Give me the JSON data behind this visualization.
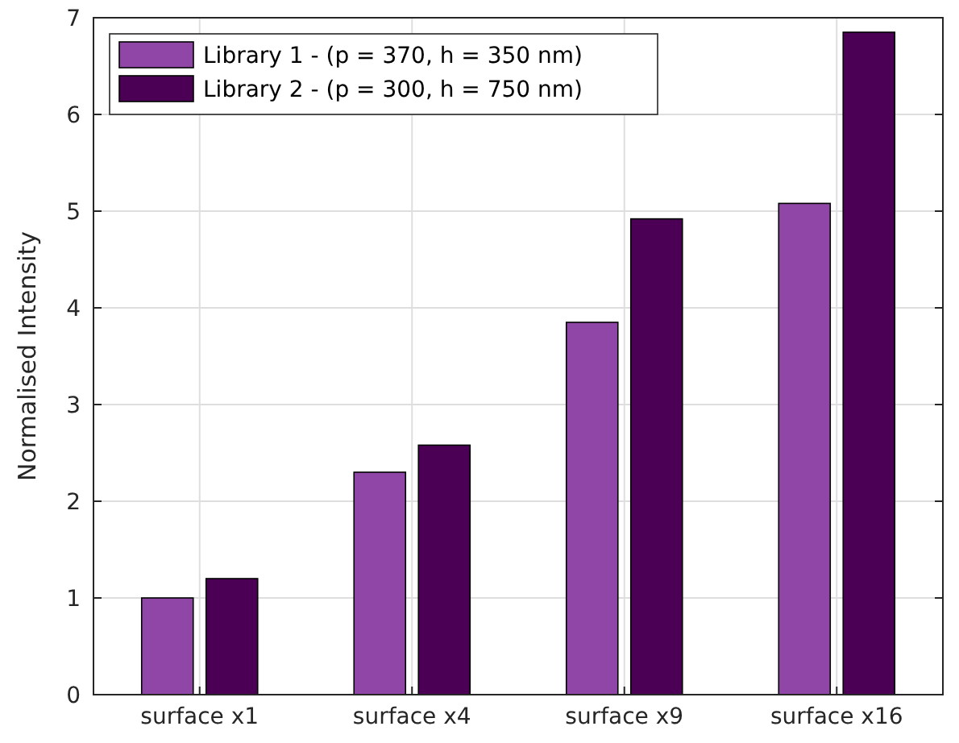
{
  "chart_data": {
    "type": "bar",
    "ylabel": "Normalised Intensity",
    "categories": [
      "surface x1",
      "surface x4",
      "surface x9",
      "surface x16"
    ],
    "series": [
      {
        "name": "Library 1 - (p = 370, h = 350 nm)",
        "color": "#9046a6",
        "values": [
          1.0,
          2.3,
          3.85,
          5.08
        ]
      },
      {
        "name": "Library 2 - (p = 300, h = 750 nm)",
        "color": "#4c0055",
        "values": [
          1.2,
          2.58,
          4.92,
          6.85
        ]
      }
    ],
    "ylim": [
      0,
      7
    ],
    "yticks": [
      0,
      1,
      2,
      3,
      4,
      5,
      6,
      7
    ],
    "grid": true,
    "legend": "top left"
  }
}
